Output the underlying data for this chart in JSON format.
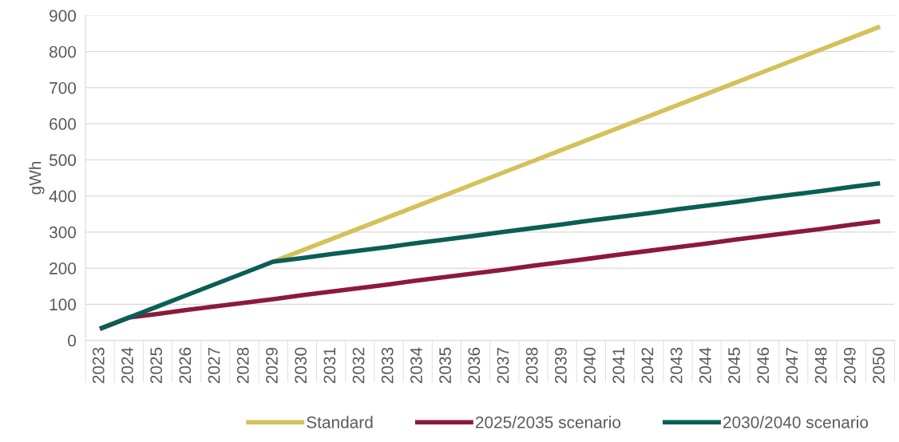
{
  "chart_data": {
    "type": "line",
    "ylabel": "gWh",
    "categories": [
      "2023",
      "2024",
      "2025",
      "2026",
      "2027",
      "2028",
      "2029",
      "2030",
      "2031",
      "2032",
      "2033",
      "2034",
      "2035",
      "2036",
      "2037",
      "2038",
      "2039",
      "2040",
      "2041",
      "2042",
      "2043",
      "2044",
      "2045",
      "2046",
      "2047",
      "2048",
      "2049",
      "2050"
    ],
    "series": [
      {
        "name": "Standard",
        "color": "#d4c15a",
        "values": [
          null,
          null,
          null,
          null,
          null,
          null,
          218,
          249,
          280,
          311,
          342,
          373,
          404,
          435,
          466,
          497,
          528,
          559,
          590,
          621,
          652,
          683,
          714,
          745,
          776,
          807,
          838,
          869
        ]
      },
      {
        "name": "2025/2035 scenario",
        "color": "#8b1a3a",
        "values": [
          32,
          63,
          73,
          84,
          94,
          104,
          114,
          125,
          135,
          145,
          155,
          166,
          176,
          186,
          196,
          207,
          217,
          227,
          238,
          248,
          258,
          268,
          279,
          289,
          299,
          309,
          320,
          330
        ]
      },
      {
        "name": "2030/2040 scenario",
        "color": "#0b5e55",
        "values": [
          32,
          63,
          94,
          125,
          156,
          187,
          218,
          228,
          239,
          249,
          259,
          270,
          280,
          290,
          301,
          311,
          321,
          332,
          342,
          352,
          363,
          373,
          383,
          394,
          404,
          414,
          425,
          435
        ]
      }
    ],
    "ylim": [
      0,
      900
    ],
    "yticks": [
      0,
      100,
      200,
      300,
      400,
      500,
      600,
      700,
      800,
      900
    ],
    "grid": "y",
    "legend": "bottom",
    "marker": "none",
    "line_style": "solid"
  }
}
